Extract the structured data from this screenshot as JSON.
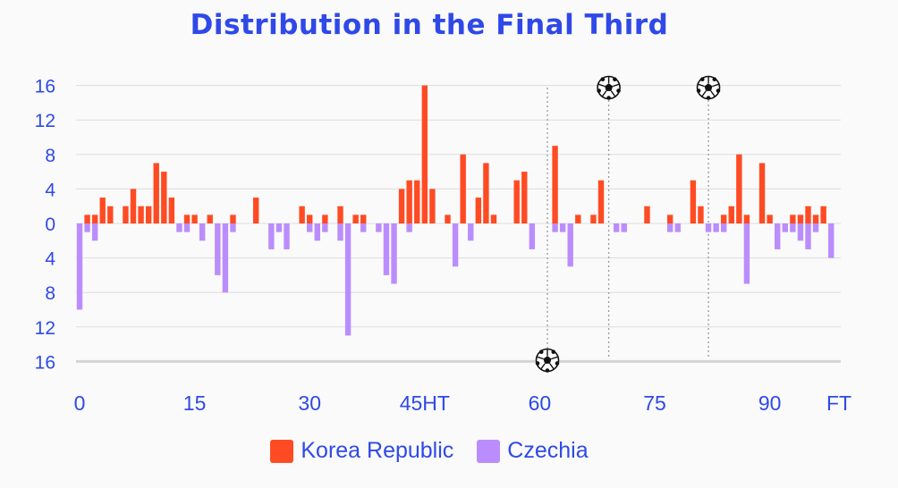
{
  "chart_data": {
    "type": "bar",
    "title": "Distribution in the Final Third",
    "colors": {
      "title": "#2f49e8",
      "axis_text": "#2f49e8",
      "home": "#ff4b23",
      "away": "#bb8dfc",
      "grid": "#dddddd"
    },
    "y_ticks": [
      "16",
      "12",
      "8",
      "4",
      "0",
      "4",
      "8",
      "12",
      "16"
    ],
    "x_ticks": [
      {
        "minute": 0,
        "label": "0"
      },
      {
        "minute": 15,
        "label": "15"
      },
      {
        "minute": 30,
        "label": "30"
      },
      {
        "minute": 45,
        "label": "45HT"
      },
      {
        "minute": 60,
        "label": "60"
      },
      {
        "minute": 75,
        "label": "75"
      },
      {
        "minute": 90,
        "label": "90"
      },
      {
        "minute": 100,
        "label": "FT"
      }
    ],
    "ylim": [
      -16,
      16
    ],
    "grid": true,
    "legend_position": "bottom",
    "series": [
      {
        "name": "Korea Republic",
        "color": "#ff4b23",
        "points": [
          [
            1,
            1
          ],
          [
            2,
            1
          ],
          [
            3,
            3
          ],
          [
            4,
            2
          ],
          [
            6,
            2
          ],
          [
            7,
            4
          ],
          [
            8,
            2
          ],
          [
            9,
            2
          ],
          [
            10,
            7
          ],
          [
            11,
            6
          ],
          [
            12,
            3
          ],
          [
            14,
            1
          ],
          [
            15,
            1
          ],
          [
            17,
            1
          ],
          [
            20,
            1
          ],
          [
            23,
            3
          ],
          [
            29,
            2
          ],
          [
            30,
            1
          ],
          [
            32,
            1
          ],
          [
            34,
            2
          ],
          [
            36,
            1
          ],
          [
            37,
            1
          ],
          [
            42,
            4
          ],
          [
            43,
            5
          ],
          [
            44,
            5
          ],
          [
            45,
            16
          ],
          [
            46,
            4
          ],
          [
            48,
            1
          ],
          [
            50,
            8
          ],
          [
            52,
            3
          ],
          [
            53,
            7
          ],
          [
            54,
            1
          ],
          [
            57,
            5
          ],
          [
            58,
            6
          ],
          [
            62,
            9
          ],
          [
            65,
            1
          ],
          [
            67,
            1
          ],
          [
            68,
            5
          ],
          [
            74,
            2
          ],
          [
            77,
            1
          ],
          [
            80,
            5
          ],
          [
            81,
            2
          ],
          [
            84,
            1
          ],
          [
            85,
            2
          ],
          [
            86,
            8
          ],
          [
            87,
            1
          ],
          [
            89,
            7
          ],
          [
            90,
            1
          ],
          [
            93,
            1
          ],
          [
            94,
            1
          ],
          [
            95,
            2
          ],
          [
            96,
            1
          ],
          [
            97,
            2
          ]
        ]
      },
      {
        "name": "Czechia",
        "color": "#bb8dfc",
        "points": [
          [
            0,
            10
          ],
          [
            1,
            1
          ],
          [
            2,
            2
          ],
          [
            13,
            1
          ],
          [
            14,
            1
          ],
          [
            16,
            2
          ],
          [
            18,
            6
          ],
          [
            19,
            8
          ],
          [
            20,
            1
          ],
          [
            25,
            3
          ],
          [
            26,
            1
          ],
          [
            27,
            3
          ],
          [
            30,
            1
          ],
          [
            31,
            2
          ],
          [
            32,
            1
          ],
          [
            34,
            2
          ],
          [
            35,
            13
          ],
          [
            37,
            1
          ],
          [
            39,
            1
          ],
          [
            40,
            6
          ],
          [
            41,
            7
          ],
          [
            43,
            1
          ],
          [
            49,
            5
          ],
          [
            51,
            2
          ],
          [
            59,
            3
          ],
          [
            62,
            1
          ],
          [
            63,
            1
          ],
          [
            64,
            5
          ],
          [
            70,
            1
          ],
          [
            71,
            1
          ],
          [
            77,
            1
          ],
          [
            78,
            1
          ],
          [
            82,
            1
          ],
          [
            83,
            1
          ],
          [
            84,
            1
          ],
          [
            87,
            7
          ],
          [
            91,
            3
          ],
          [
            92,
            1
          ],
          [
            93,
            1
          ],
          [
            94,
            2
          ],
          [
            95,
            3
          ],
          [
            96,
            1
          ],
          [
            98,
            4
          ]
        ]
      }
    ],
    "goals": [
      {
        "team": "Czechia",
        "minute": 61
      },
      {
        "team": "Korea Republic",
        "minute": 69
      },
      {
        "team": "Korea Republic",
        "minute": 82
      }
    ]
  }
}
